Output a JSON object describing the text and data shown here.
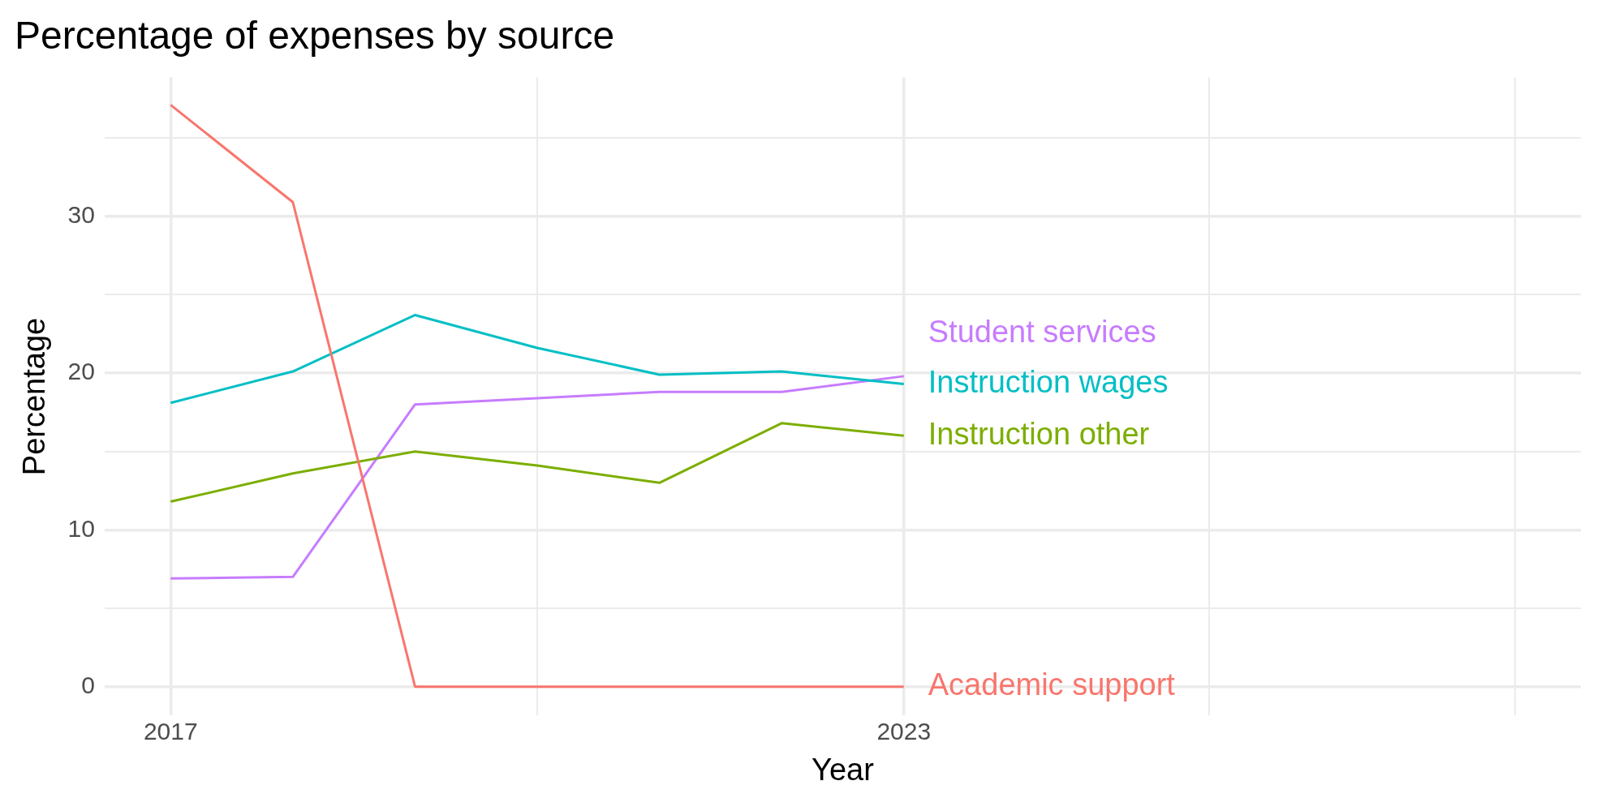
{
  "chart_data": {
    "type": "line",
    "title": "Percentage of expenses by source",
    "xlabel": "Year",
    "ylabel": "Percentage",
    "x": [
      2017,
      2018,
      2019,
      2020,
      2021,
      2022,
      2023
    ],
    "series": [
      {
        "name": "Academic support",
        "color": "#f8766d",
        "values": [
          37.1,
          30.9,
          0,
          0,
          0,
          0,
          0
        ]
      },
      {
        "name": "Instruction other",
        "color": "#7cae00",
        "values": [
          11.8,
          13.6,
          15.0,
          14.1,
          13.0,
          16.8,
          16.0
        ]
      },
      {
        "name": "Instruction wages",
        "color": "#00bfc4",
        "values": [
          18.1,
          20.1,
          23.7,
          21.6,
          19.9,
          20.1,
          19.3
        ]
      },
      {
        "name": "Student services",
        "color": "#c77cff",
        "values": [
          6.9,
          7.0,
          18.0,
          18.4,
          18.8,
          18.8,
          19.8
        ]
      }
    ],
    "xlim": [
      2016.46,
      2028.54
    ],
    "xticks": [
      2017,
      {
        "value": 2020,
        "label": null
      },
      2023,
      {
        "value": 2025.5,
        "label": null
      },
      {
        "value": 2028,
        "label": null
      }
    ],
    "ylim": [
      -1.85,
      38.85
    ],
    "yticks": [
      0,
      {
        "value": 5,
        "label": null
      },
      10,
      {
        "value": 15,
        "label": null
      },
      20,
      {
        "value": 25,
        "label": null
      },
      30,
      {
        "value": 35,
        "label": null
      }
    ],
    "grid": true,
    "legend": false,
    "marker": "none",
    "line_style": "solid"
  }
}
